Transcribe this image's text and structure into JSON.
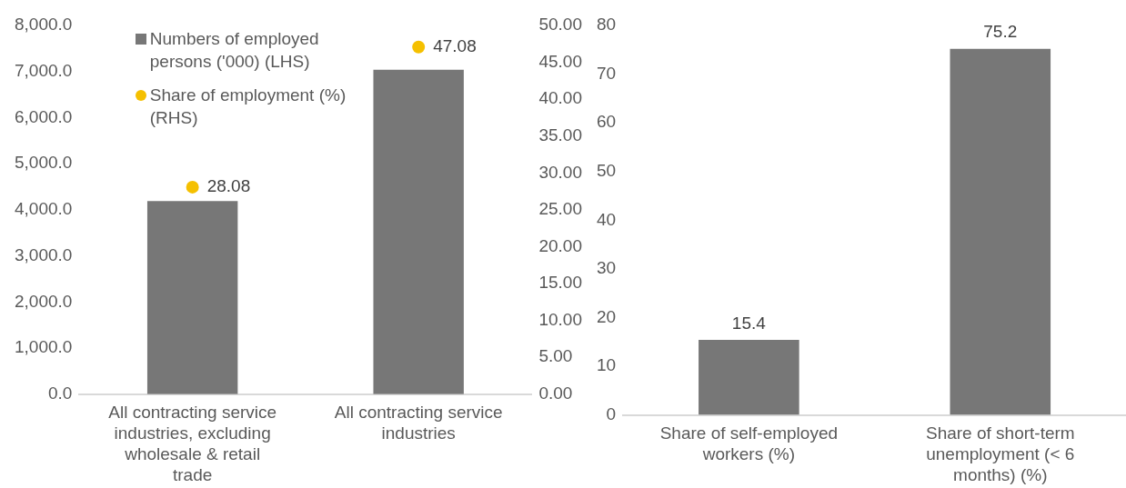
{
  "chart_data": [
    {
      "type": "bar",
      "categories": [
        "All contracting service industries, excluding wholesale & retail trade",
        "All contracting service industries"
      ],
      "series": [
        {
          "name": "Numbers of employed persons ('000) (LHS)",
          "color": "#777777",
          "values": [
            4190,
            7040
          ]
        },
        {
          "name": "Share of employment (%) (RHS)",
          "type": "scatter",
          "axis": "y2",
          "color": "#f5c000",
          "values": [
            28.08,
            47.08
          ],
          "value_labels": [
            "28.08",
            "47.08"
          ]
        }
      ],
      "ylim": [
        0,
        8000
      ],
      "yticks": [
        {
          "value": 0,
          "label": "0.0"
        },
        {
          "value": 1000,
          "label": "1,000.0"
        },
        {
          "value": 2000,
          "label": "2,000.0"
        },
        {
          "value": 3000,
          "label": "3,000.0"
        },
        {
          "value": 4000,
          "label": "4,000.0"
        },
        {
          "value": 5000,
          "label": "5,000.0"
        },
        {
          "value": 6000,
          "label": "6,000.0"
        },
        {
          "value": 7000,
          "label": "7,000.0"
        },
        {
          "value": 8000,
          "label": "8,000.0"
        }
      ],
      "y2lim": [
        0,
        50
      ],
      "y2ticks": [
        {
          "value": 0,
          "label": "0.00"
        },
        {
          "value": 5,
          "label": "5.00"
        },
        {
          "value": 10,
          "label": "10.00"
        },
        {
          "value": 15,
          "label": "15.00"
        },
        {
          "value": 20,
          "label": "20.00"
        },
        {
          "value": 25,
          "label": "25.00"
        },
        {
          "value": 30,
          "label": "30.00"
        },
        {
          "value": 35,
          "label": "35.00"
        },
        {
          "value": 40,
          "label": "40.00"
        },
        {
          "value": 45,
          "label": "45.00"
        },
        {
          "value": 50,
          "label": "50.00"
        }
      ],
      "legend": "top left",
      "grid": false,
      "marker": "circle"
    },
    {
      "type": "bar",
      "categories": [
        "Share of self-employed workers (%)",
        "Share of short-term unemployment (< 6 months) (%)"
      ],
      "values": [
        15.4,
        75.2
      ],
      "color": "#777777",
      "ylim": [
        0,
        80
      ],
      "yticks": [
        0,
        10,
        20,
        30,
        40,
        50,
        60,
        70,
        80
      ],
      "data_labels": true,
      "grid": false
    }
  ]
}
